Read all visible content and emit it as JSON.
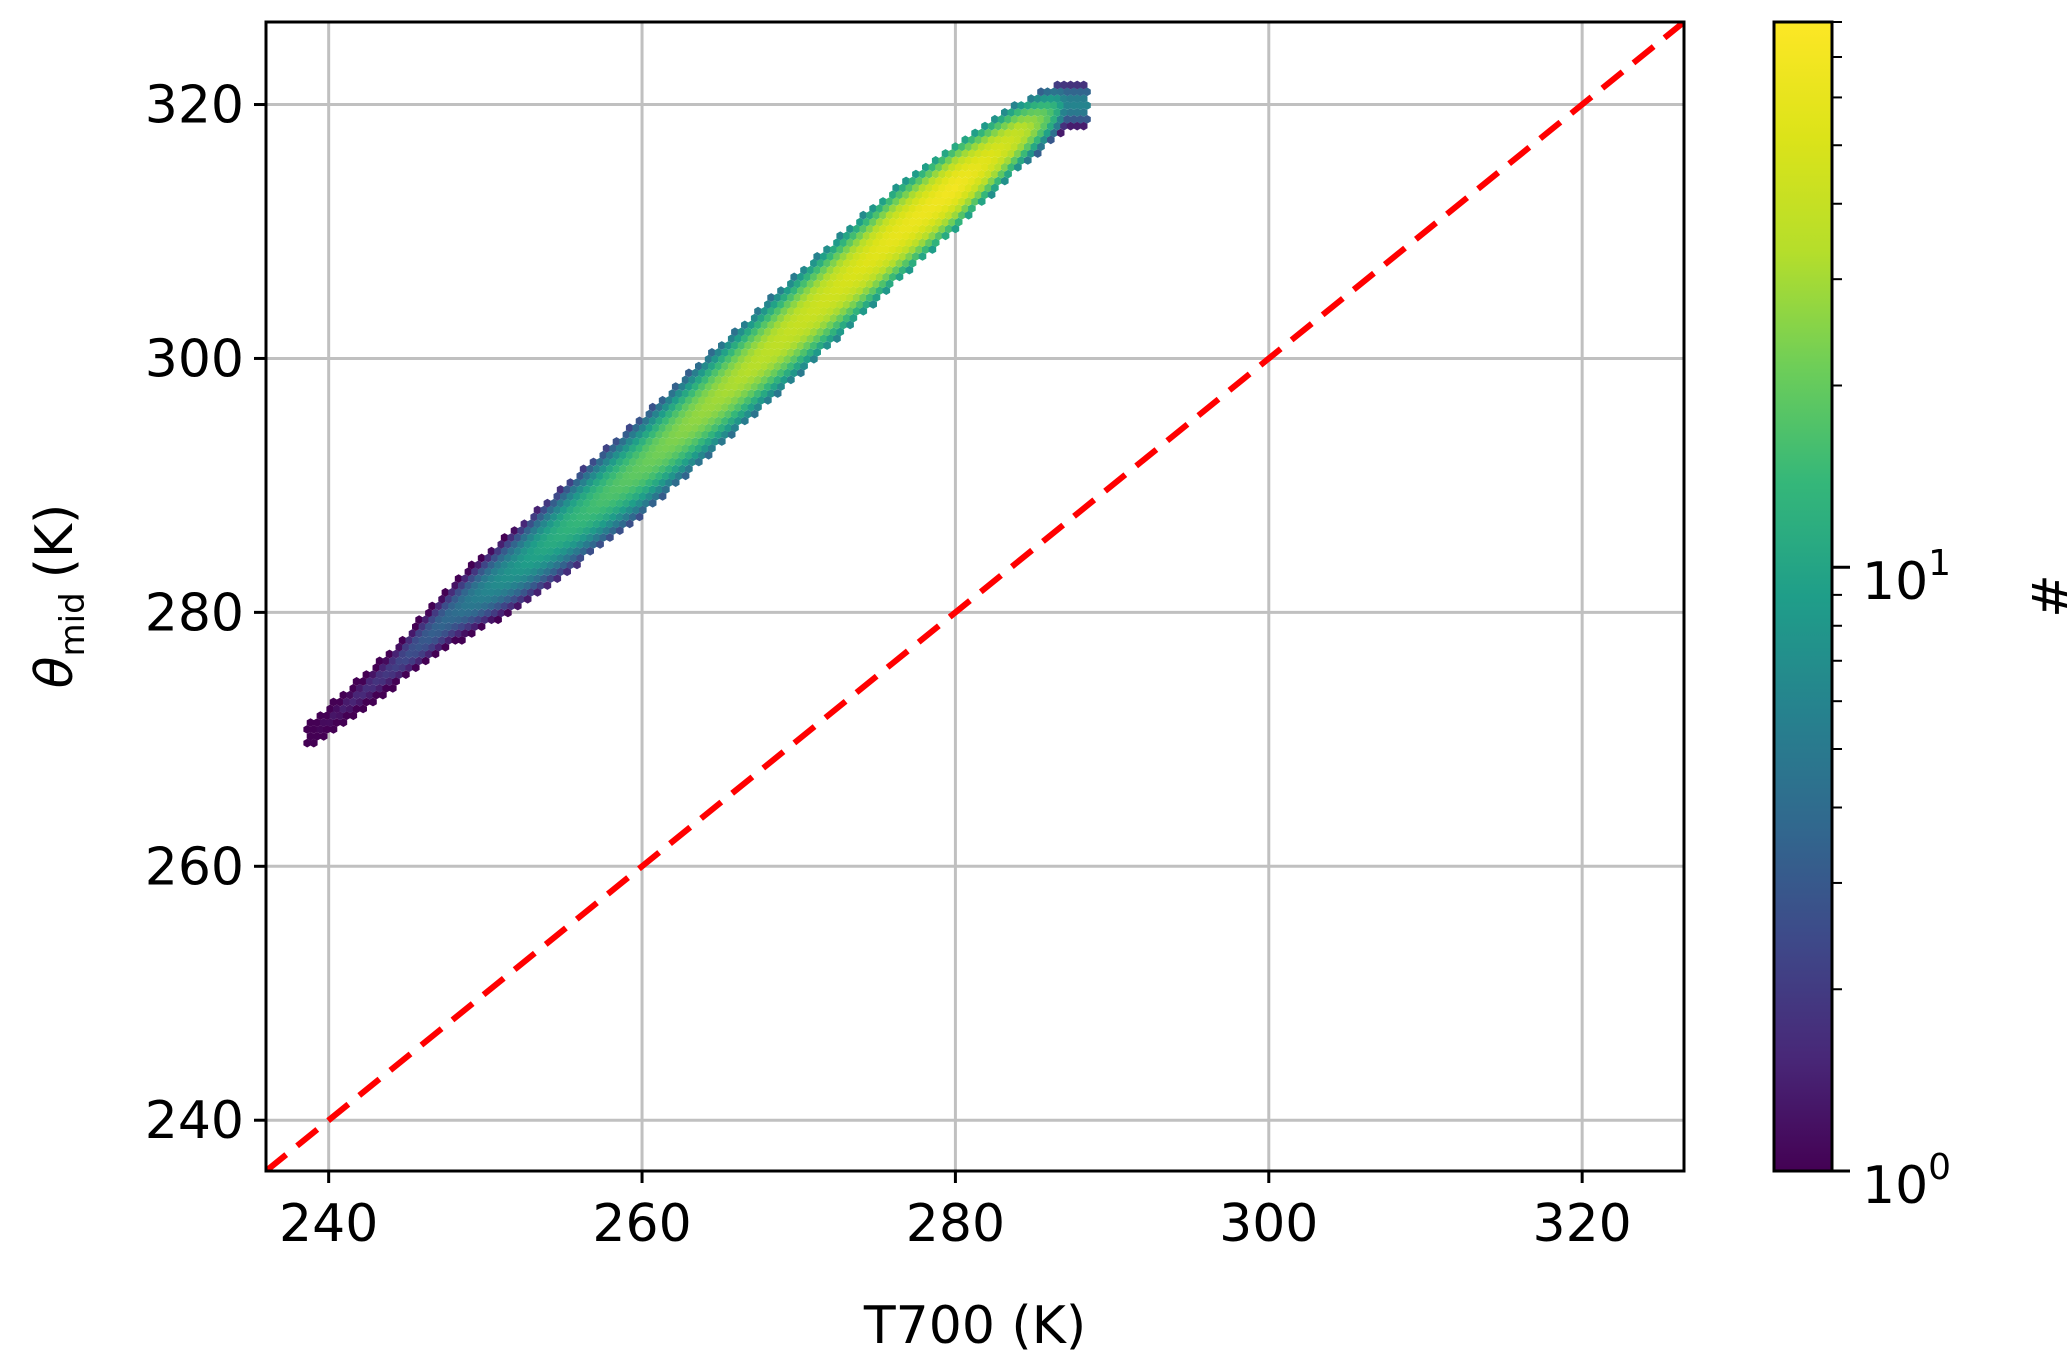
{
  "chart_data": {
    "type": "hexbin",
    "xlabel": "T700 (K)",
    "ylabel": {
      "symbol": "θ",
      "subscript": "mid",
      "unit": "(K)"
    },
    "xlim": [
      236,
      326.5
    ],
    "ylim": [
      236,
      326.5
    ],
    "xticks": [
      240,
      260,
      280,
      300,
      320
    ],
    "yticks": [
      240,
      260,
      280,
      300,
      320
    ],
    "grid": true,
    "reference_line": {
      "type": "identity",
      "style": "dashed",
      "color": "#ff0000"
    },
    "colorbar": {
      "label": "#",
      "scale": "log",
      "range": [
        1,
        80
      ],
      "colormap": "viridis",
      "ticks": [
        {
          "value": 1,
          "base": "10",
          "exp": "0"
        },
        {
          "value": 10,
          "base": "10",
          "exp": "1"
        }
      ]
    },
    "density_ridge": {
      "x": [
        239,
        244,
        248,
        252,
        256,
        260,
        264,
        268,
        272,
        276,
        280,
        284,
        287
      ],
      "y_center": [
        270.5,
        275.5,
        280.0,
        283.5,
        287.5,
        291.5,
        296.0,
        300.5,
        305.0,
        309.5,
        313.5,
        317.5,
        320.0
      ],
      "peak_count": [
        1,
        2,
        4,
        8,
        14,
        20,
        28,
        36,
        45,
        60,
        70,
        40,
        6
      ],
      "spread": [
        1.0,
        1.5,
        2.0,
        2.4,
        2.7,
        2.9,
        3.0,
        3.0,
        3.0,
        2.8,
        2.5,
        2.0,
        1.5
      ]
    }
  }
}
